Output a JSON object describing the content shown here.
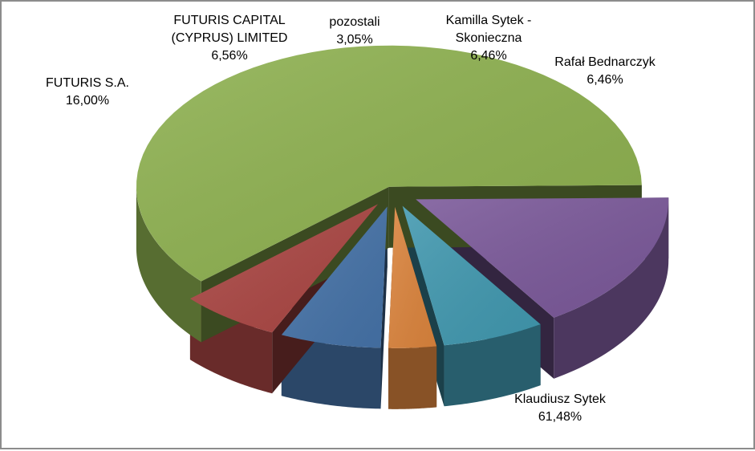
{
  "chart_data": {
    "type": "pie",
    "style": "3d-exploded",
    "title": "",
    "legend": "none",
    "slices": [
      {
        "name": "Klaudiusz Sytek",
        "value": 61.48,
        "label": "61,48%",
        "color": "#8DB04F"
      },
      {
        "name": "FUTURIS S.A.",
        "value": 16.0,
        "label": "16,00%",
        "color": "#7A5899"
      },
      {
        "name": "FUTURIS CAPITAL (CYPRUS) LIMITED",
        "value": 6.56,
        "label": "6,56%",
        "color": "#4198AF"
      },
      {
        "name": "pozostali",
        "value": 3.05,
        "label": "3,05%",
        "color": "#DB843D"
      },
      {
        "name": "Kamilla Sytek - Skonieczna",
        "value": 6.46,
        "label": "6,46%",
        "color": "#4572A7"
      },
      {
        "name": "Rafał Bednarczyk",
        "value": 6.46,
        "label": "6,46%",
        "color": "#AA4643"
      }
    ]
  }
}
